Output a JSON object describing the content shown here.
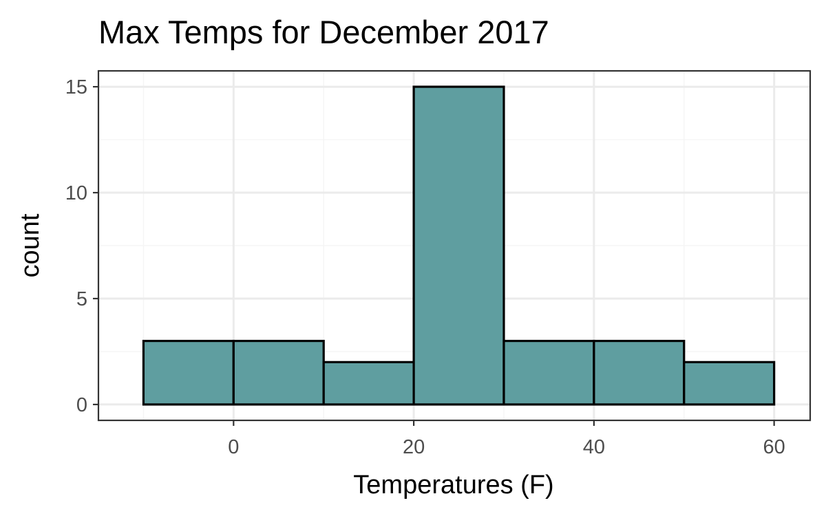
{
  "chart_data": {
    "type": "bar",
    "title": "Max Temps for December 2017",
    "xlabel": "Temperatures (F)",
    "ylabel": "count",
    "bins": [
      {
        "x0": -10,
        "x1": 0,
        "count": 3
      },
      {
        "x0": 0,
        "x1": 10,
        "count": 3
      },
      {
        "x0": 10,
        "x1": 20,
        "count": 2
      },
      {
        "x0": 20,
        "x1": 30,
        "count": 15
      },
      {
        "x0": 30,
        "x1": 40,
        "count": 3
      },
      {
        "x0": 40,
        "x1": 50,
        "count": 3
      },
      {
        "x0": 50,
        "x1": 60,
        "count": 2
      }
    ],
    "xlim": [
      -15,
      64
    ],
    "ylim": [
      -0.75,
      15.75
    ],
    "x_ticks": [
      0,
      20,
      40,
      60
    ],
    "x_tick_labels": [
      "0",
      "20",
      "40",
      "60"
    ],
    "y_ticks": [
      0,
      5,
      10,
      15
    ],
    "y_tick_labels": [
      "0",
      "5",
      "10",
      "15"
    ],
    "grid": true,
    "colors": {
      "bar_fill": "#5f9ea0",
      "bar_outline": "#000000",
      "grid_major": "#ebebeb",
      "grid_minor": "#f5f5f5",
      "panel_border": "#333333"
    }
  }
}
